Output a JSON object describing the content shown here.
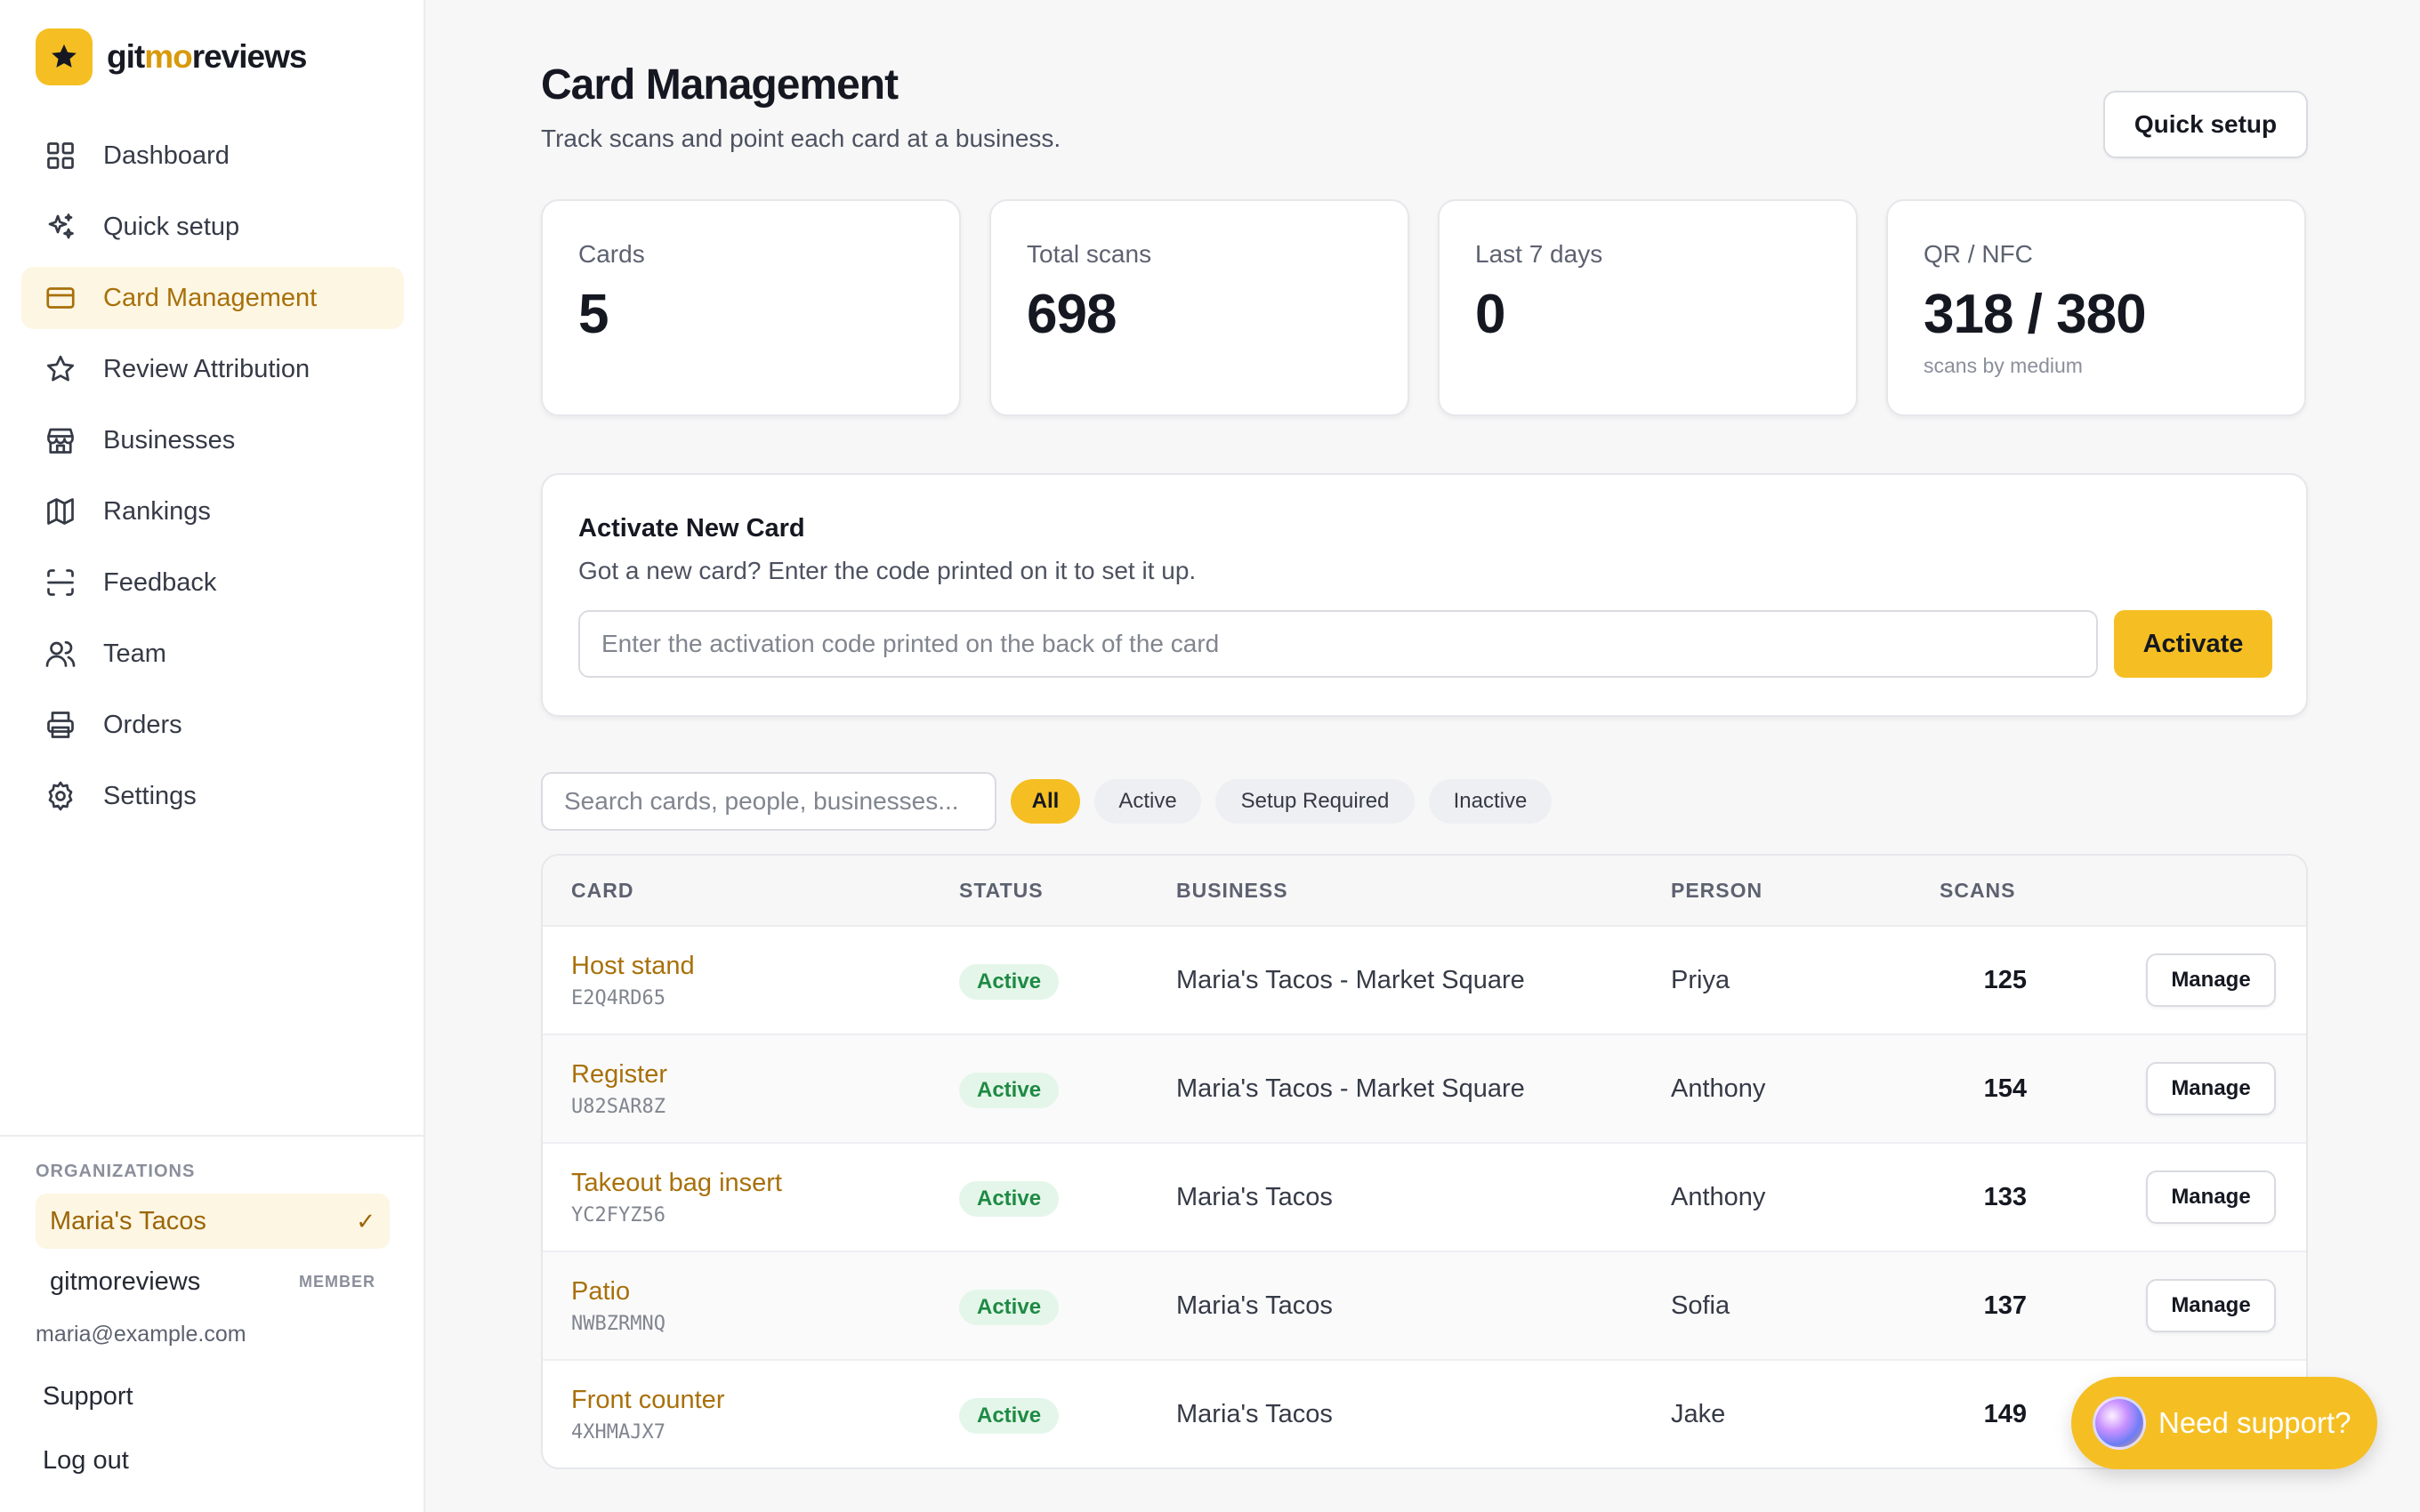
{
  "app": {
    "logo_part1": "git",
    "logo_part2": "mo",
    "logo_part3": "reviews",
    "brand_color": "#f5bf23",
    "accent_text_color": "#a8700a"
  },
  "sidebar": {
    "items": [
      {
        "label": "Dashboard",
        "icon": "grid-icon"
      },
      {
        "label": "Quick setup",
        "icon": "sparkles-icon"
      },
      {
        "label": "Card Management",
        "icon": "credit-card-icon",
        "active": true
      },
      {
        "label": "Review Attribution",
        "icon": "star-icon"
      },
      {
        "label": "Businesses",
        "icon": "store-icon"
      },
      {
        "label": "Rankings",
        "icon": "map-icon"
      },
      {
        "label": "Feedback",
        "icon": "scan-icon"
      },
      {
        "label": "Team",
        "icon": "users-icon"
      },
      {
        "label": "Orders",
        "icon": "printer-icon"
      },
      {
        "label": "Settings",
        "icon": "gear-icon"
      }
    ],
    "org_label": "ORGANIZATIONS",
    "orgs": [
      {
        "name": "Maria's Tacos",
        "selected": true,
        "mark": "✓"
      },
      {
        "name": "gitmoreviews",
        "role": "MEMBER"
      }
    ],
    "email": "maria@example.com",
    "support_label": "Support",
    "logout_label": "Log out"
  },
  "header": {
    "title": "Card Management",
    "subtitle": "Track scans and point each card at a business.",
    "quick_setup_label": "Quick setup"
  },
  "stats": [
    {
      "label": "Cards",
      "value": "5"
    },
    {
      "label": "Total scans",
      "value": "698"
    },
    {
      "label": "Last 7 days",
      "value": "0"
    },
    {
      "label": "QR / NFC",
      "value": "318 / 380",
      "caption": "scans by medium"
    }
  ],
  "activate": {
    "title": "Activate New Card",
    "description": "Got a new card? Enter the code printed on it to set it up.",
    "placeholder": "Enter the activation code printed on the back of the card",
    "button_label": "Activate"
  },
  "filters": {
    "search_placeholder": "Search cards, people, businesses...",
    "chips": [
      {
        "label": "All",
        "active": true
      },
      {
        "label": "Active"
      },
      {
        "label": "Setup Required"
      },
      {
        "label": "Inactive"
      }
    ]
  },
  "table": {
    "columns": [
      "CARD",
      "STATUS",
      "BUSINESS",
      "PERSON",
      "SCANS"
    ],
    "action_label": "Manage",
    "rows": [
      {
        "name": "Host stand",
        "code": "E2Q4RD65",
        "status": "Active",
        "business": "Maria's Tacos - Market Square",
        "person": "Priya",
        "scans": "125"
      },
      {
        "name": "Register",
        "code": "U82SAR8Z",
        "status": "Active",
        "business": "Maria's Tacos - Market Square",
        "person": "Anthony",
        "scans": "154"
      },
      {
        "name": "Takeout bag insert",
        "code": "YC2FYZ56",
        "status": "Active",
        "business": "Maria's Tacos",
        "person": "Anthony",
        "scans": "133"
      },
      {
        "name": "Patio",
        "code": "NWBZRMNQ",
        "status": "Active",
        "business": "Maria's Tacos",
        "person": "Sofia",
        "scans": "137"
      },
      {
        "name": "Front counter",
        "code": "4XHMAJX7",
        "status": "Active",
        "business": "Maria's Tacos",
        "person": "Jake",
        "scans": "149"
      }
    ]
  },
  "support_fab": {
    "label": "Need support?"
  }
}
